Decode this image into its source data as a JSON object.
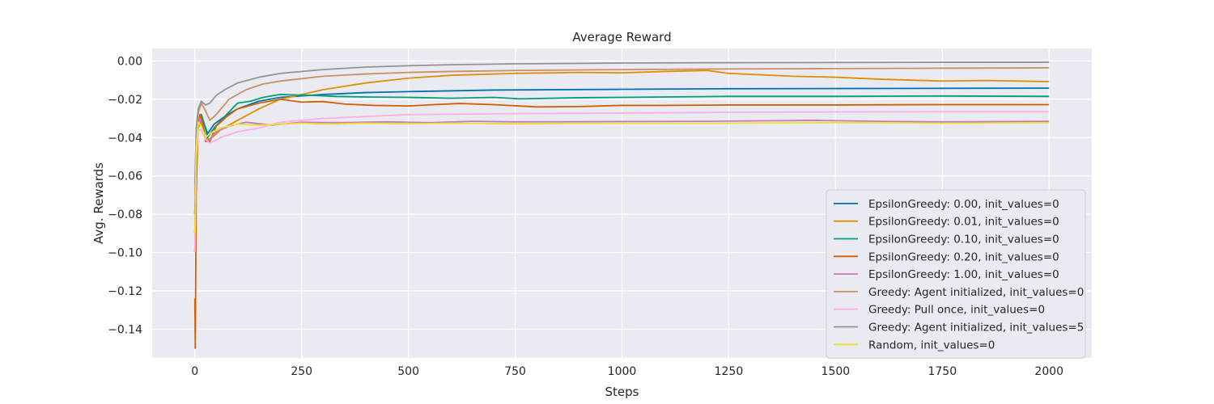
{
  "chart_data": {
    "type": "line",
    "title": "Average Reward",
    "xlabel": "Steps",
    "ylabel": "Avg. Rewards",
    "xlim": [
      -100,
      2100
    ],
    "ylim": [
      -0.155,
      0.0065
    ],
    "xticks": [
      0,
      250,
      500,
      750,
      1000,
      1250,
      1500,
      1750,
      2000
    ],
    "yticks": [
      -0.14,
      -0.12,
      -0.1,
      -0.08,
      -0.06,
      -0.04,
      -0.02,
      0.0
    ],
    "xtick_labels": [
      "0",
      "250",
      "500",
      "750",
      "1000",
      "1250",
      "1500",
      "1750",
      "2000"
    ],
    "ytick_labels": [
      "−0.14",
      "−0.12",
      "−0.10",
      "−0.08",
      "−0.06",
      "−0.04",
      "−0.02",
      "0.00"
    ],
    "grid": true,
    "legend_position": "lower-right",
    "colors": {
      "plot_background": "#eaeaf2",
      "grid": "#ffffff"
    },
    "series": [
      {
        "name": "EpsilonGreedy: 0.00, init_values=0",
        "color": "#0173b2",
        "points": [
          [
            0,
            -0.08
          ],
          [
            3,
            -0.045
          ],
          [
            8,
            -0.032
          ],
          [
            15,
            -0.028
          ],
          [
            22,
            -0.033
          ],
          [
            30,
            -0.038
          ],
          [
            45,
            -0.033
          ],
          [
            70,
            -0.029
          ],
          [
            100,
            -0.025
          ],
          [
            150,
            -0.021
          ],
          [
            200,
            -0.019
          ],
          [
            300,
            -0.0175
          ],
          [
            400,
            -0.0165
          ],
          [
            500,
            -0.016
          ],
          [
            700,
            -0.0152
          ],
          [
            1000,
            -0.0148
          ],
          [
            1250,
            -0.0145
          ],
          [
            1500,
            -0.0144
          ],
          [
            1750,
            -0.0143
          ],
          [
            2000,
            -0.0142
          ]
        ]
      },
      {
        "name": "EpsilonGreedy: 0.01, init_values=0",
        "color": "#de8f05",
        "points": [
          [
            0,
            -0.1
          ],
          [
            3,
            -0.05
          ],
          [
            8,
            -0.035
          ],
          [
            15,
            -0.031
          ],
          [
            25,
            -0.04
          ],
          [
            35,
            -0.041
          ],
          [
            60,
            -0.036
          ],
          [
            100,
            -0.031
          ],
          [
            150,
            -0.025
          ],
          [
            200,
            -0.02
          ],
          [
            300,
            -0.015
          ],
          [
            400,
            -0.0115
          ],
          [
            500,
            -0.009
          ],
          [
            600,
            -0.0075
          ],
          [
            750,
            -0.0065
          ],
          [
            900,
            -0.006
          ],
          [
            1000,
            -0.0062
          ],
          [
            1100,
            -0.0055
          ],
          [
            1200,
            -0.005
          ],
          [
            1250,
            -0.0065
          ],
          [
            1400,
            -0.008
          ],
          [
            1500,
            -0.0085
          ],
          [
            1600,
            -0.0095
          ],
          [
            1750,
            -0.0105
          ],
          [
            1850,
            -0.0102
          ],
          [
            2000,
            -0.0108
          ]
        ]
      },
      {
        "name": "EpsilonGreedy: 0.10, init_values=0",
        "color": "#029e73",
        "points": [
          [
            0,
            -0.09
          ],
          [
            3,
            -0.05
          ],
          [
            8,
            -0.032
          ],
          [
            15,
            -0.028
          ],
          [
            22,
            -0.033
          ],
          [
            30,
            -0.04
          ],
          [
            45,
            -0.035
          ],
          [
            70,
            -0.029
          ],
          [
            100,
            -0.022
          ],
          [
            130,
            -0.021
          ],
          [
            160,
            -0.019
          ],
          [
            200,
            -0.0175
          ],
          [
            240,
            -0.0178
          ],
          [
            280,
            -0.018
          ],
          [
            330,
            -0.0185
          ],
          [
            400,
            -0.0188
          ],
          [
            500,
            -0.019
          ],
          [
            600,
            -0.0195
          ],
          [
            700,
            -0.019
          ],
          [
            760,
            -0.0198
          ],
          [
            900,
            -0.0192
          ],
          [
            1000,
            -0.019
          ],
          [
            1250,
            -0.0185
          ],
          [
            1500,
            -0.0185
          ],
          [
            1750,
            -0.0183
          ],
          [
            2000,
            -0.0185
          ]
        ]
      },
      {
        "name": "EpsilonGreedy: 0.20, init_values=0",
        "color": "#d55e00",
        "points": [
          [
            0,
            -0.124
          ],
          [
            1,
            -0.15
          ],
          [
            3,
            -0.07
          ],
          [
            7,
            -0.035
          ],
          [
            12,
            -0.028
          ],
          [
            18,
            -0.032
          ],
          [
            25,
            -0.042
          ],
          [
            35,
            -0.042
          ],
          [
            50,
            -0.034
          ],
          [
            75,
            -0.029
          ],
          [
            100,
            -0.025
          ],
          [
            150,
            -0.022
          ],
          [
            200,
            -0.02
          ],
          [
            250,
            -0.0215
          ],
          [
            300,
            -0.0212
          ],
          [
            350,
            -0.0225
          ],
          [
            420,
            -0.0232
          ],
          [
            500,
            -0.0235
          ],
          [
            560,
            -0.0228
          ],
          [
            620,
            -0.0222
          ],
          [
            700,
            -0.0228
          ],
          [
            800,
            -0.024
          ],
          [
            900,
            -0.0238
          ],
          [
            1000,
            -0.0232
          ],
          [
            1100,
            -0.0232
          ],
          [
            1250,
            -0.023
          ],
          [
            1500,
            -0.023
          ],
          [
            1750,
            -0.0228
          ],
          [
            2000,
            -0.0228
          ]
        ]
      },
      {
        "name": "EpsilonGreedy: 1.00, init_values=0",
        "color": "#cc78bc",
        "points": [
          [
            0,
            -0.1
          ],
          [
            3,
            -0.055
          ],
          [
            7,
            -0.035
          ],
          [
            12,
            -0.03
          ],
          [
            20,
            -0.038
          ],
          [
            30,
            -0.042
          ],
          [
            50,
            -0.037
          ],
          [
            80,
            -0.034
          ],
          [
            120,
            -0.032
          ],
          [
            180,
            -0.0335
          ],
          [
            250,
            -0.032
          ],
          [
            350,
            -0.0322
          ],
          [
            450,
            -0.0318
          ],
          [
            550,
            -0.0322
          ],
          [
            650,
            -0.0315
          ],
          [
            750,
            -0.0318
          ],
          [
            900,
            -0.0317
          ],
          [
            1000,
            -0.0316
          ],
          [
            1200,
            -0.0315
          ],
          [
            1450,
            -0.031
          ],
          [
            1500,
            -0.0312
          ],
          [
            1600,
            -0.0315
          ],
          [
            1750,
            -0.0318
          ],
          [
            2000,
            -0.0315
          ]
        ]
      },
      {
        "name": "Greedy: Agent initialized, init_values=0",
        "color": "#ca9161",
        "points": [
          [
            0,
            -0.07
          ],
          [
            3,
            -0.04
          ],
          [
            8,
            -0.027
          ],
          [
            15,
            -0.022
          ],
          [
            25,
            -0.026
          ],
          [
            35,
            -0.031
          ],
          [
            50,
            -0.028
          ],
          [
            80,
            -0.02
          ],
          [
            120,
            -0.015
          ],
          [
            160,
            -0.012
          ],
          [
            200,
            -0.0105
          ],
          [
            300,
            -0.008
          ],
          [
            400,
            -0.0068
          ],
          [
            500,
            -0.006
          ],
          [
            600,
            -0.0055
          ],
          [
            750,
            -0.005
          ],
          [
            1000,
            -0.0045
          ],
          [
            1250,
            -0.0042
          ],
          [
            1500,
            -0.004
          ],
          [
            1750,
            -0.0038
          ],
          [
            2000,
            -0.0036
          ]
        ]
      },
      {
        "name": "Greedy: Pull once, init_values=0",
        "color": "#fbafe4",
        "points": [
          [
            0,
            -0.1
          ],
          [
            3,
            -0.05
          ],
          [
            8,
            -0.036
          ],
          [
            15,
            -0.036
          ],
          [
            25,
            -0.041
          ],
          [
            35,
            -0.043
          ],
          [
            60,
            -0.04
          ],
          [
            100,
            -0.037
          ],
          [
            150,
            -0.035
          ],
          [
            200,
            -0.032
          ],
          [
            300,
            -0.03
          ],
          [
            400,
            -0.029
          ],
          [
            500,
            -0.028
          ],
          [
            600,
            -0.0278
          ],
          [
            750,
            -0.0275
          ],
          [
            1000,
            -0.0272
          ],
          [
            1250,
            -0.0268
          ],
          [
            1500,
            -0.0266
          ],
          [
            1750,
            -0.0265
          ],
          [
            2000,
            -0.0265
          ]
        ]
      },
      {
        "name": "Greedy: Agent initialized, init_values=5",
        "color": "#949494",
        "points": [
          [
            0,
            -0.065
          ],
          [
            3,
            -0.035
          ],
          [
            8,
            -0.025
          ],
          [
            15,
            -0.021
          ],
          [
            25,
            -0.023
          ],
          [
            35,
            -0.022
          ],
          [
            50,
            -0.018
          ],
          [
            70,
            -0.015
          ],
          [
            100,
            -0.0115
          ],
          [
            150,
            -0.0085
          ],
          [
            200,
            -0.0065
          ],
          [
            300,
            -0.0045
          ],
          [
            400,
            -0.0032
          ],
          [
            500,
            -0.0025
          ],
          [
            600,
            -0.002
          ],
          [
            750,
            -0.0015
          ],
          [
            1000,
            -0.0011
          ],
          [
            1250,
            -0.0009
          ],
          [
            1500,
            -0.0008
          ],
          [
            1750,
            -0.0007
          ],
          [
            2000,
            -0.0007
          ]
        ]
      },
      {
        "name": "Random, init_values=0",
        "color": "#ece133",
        "points": [
          [
            0,
            -0.09
          ],
          [
            3,
            -0.045
          ],
          [
            8,
            -0.032
          ],
          [
            15,
            -0.034
          ],
          [
            25,
            -0.04
          ],
          [
            35,
            -0.038
          ],
          [
            60,
            -0.035
          ],
          [
            100,
            -0.033
          ],
          [
            150,
            -0.0335
          ],
          [
            200,
            -0.033
          ],
          [
            250,
            -0.0325
          ],
          [
            300,
            -0.033
          ],
          [
            400,
            -0.0325
          ],
          [
            500,
            -0.0328
          ],
          [
            600,
            -0.0325
          ],
          [
            750,
            -0.0328
          ],
          [
            900,
            -0.0326
          ],
          [
            1000,
            -0.0325
          ],
          [
            1250,
            -0.0325
          ],
          [
            1500,
            -0.0322
          ],
          [
            1750,
            -0.0325
          ],
          [
            2000,
            -0.0323
          ]
        ]
      }
    ]
  }
}
